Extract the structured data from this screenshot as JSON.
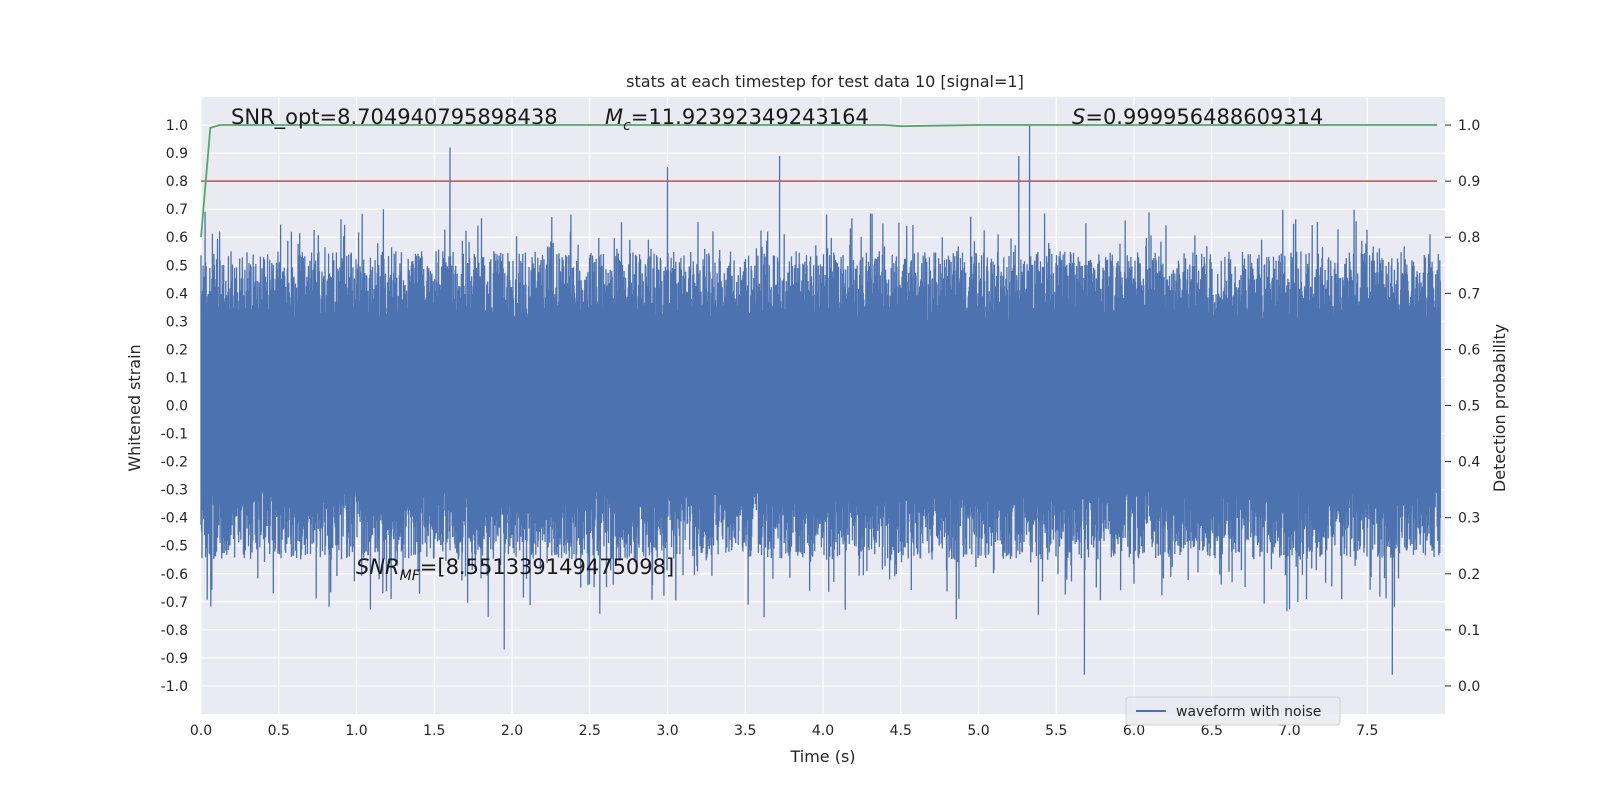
{
  "chart_data": {
    "type": "line",
    "title": "stats at each timestep for test data 10 [signal=1]",
    "xlabel": "Time (s)",
    "ylabel": "Whitened strain",
    "ylabel_right": "Detection probability",
    "xlim": [
      0.0,
      8.0
    ],
    "ylim": [
      -1.1,
      1.1
    ],
    "ylim_right": [
      -0.05,
      1.05
    ],
    "x_ticks": [
      "0.0",
      "0.5",
      "1.0",
      "1.5",
      "2.0",
      "2.5",
      "3.0",
      "3.5",
      "4.0",
      "4.5",
      "5.0",
      "5.5",
      "6.0",
      "6.5",
      "7.0",
      "7.5"
    ],
    "y_ticks": [
      "1.0",
      "0.9",
      "0.8",
      "0.7",
      "0.6",
      "0.5",
      "0.4",
      "0.3",
      "0.2",
      "0.1",
      "0.0",
      "-0.1",
      "-0.2",
      "-0.3",
      "-0.4",
      "-0.5",
      "-0.6",
      "-0.7",
      "-0.8",
      "-0.9",
      "-1.0"
    ],
    "y_ticks_right": [
      "1.0",
      "0.9",
      "0.8",
      "0.7",
      "0.6",
      "0.5",
      "0.4",
      "0.3",
      "0.2",
      "0.1",
      "0.0"
    ],
    "grid": true,
    "legend": {
      "position": "lower-right",
      "entries": [
        "waveform with noise"
      ]
    },
    "series": [
      {
        "name": "waveform with noise",
        "axis": "left",
        "color": "#4c72b0",
        "description_values": {
          "typical_range": [
            -0.55,
            0.55
          ],
          "peak_max": 1.0,
          "peak_min": -0.96,
          "notable_peaks": [
            [
              1.6,
              0.92
            ],
            [
              3.0,
              0.85
            ],
            [
              3.72,
              0.89
            ],
            [
              5.26,
              0.89
            ],
            [
              5.33,
              1.0
            ],
            [
              5.68,
              -0.96
            ],
            [
              7.66,
              -0.96
            ],
            [
              1.95,
              -0.87
            ]
          ]
        }
      },
      {
        "name": "detection probability",
        "axis": "right",
        "color": "#55a868",
        "x": [
          0.0,
          0.06,
          0.12,
          0.5,
          1.0,
          2.0,
          3.0,
          4.0,
          4.4,
          4.5,
          5.0,
          6.0,
          7.0,
          7.95
        ],
        "values": [
          0.8,
          0.995,
          1.0,
          1.0,
          1.0,
          1.0,
          1.0,
          1.0,
          1.0,
          0.998,
          1.0,
          1.0,
          1.0,
          1.0
        ]
      },
      {
        "name": "threshold",
        "axis": "right",
        "color": "#c44e52",
        "x": [
          0.0,
          7.95
        ],
        "values": [
          0.9,
          0.9
        ]
      }
    ],
    "annotations": {
      "snr_opt": "SNR_opt=8.704940795898438",
      "mc": "=11.92392349243164",
      "s": "=0.999956488609314",
      "snr_mf": "=[8.551339149475098]"
    },
    "colors": {
      "background": "#eaeaf2",
      "grid": "#ffffff"
    }
  }
}
